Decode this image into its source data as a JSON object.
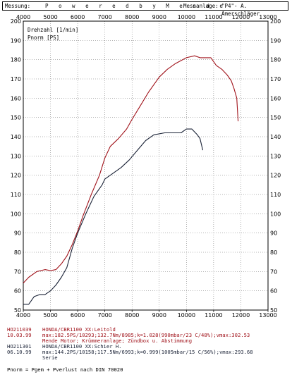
{
  "header": {
    "label": "Messung:",
    "title": "P o w e r e d  b y  M e n d e",
    "messanlage_label": "Messanlage:",
    "messanlage_value": "\"P4\"- A. Amerschläger"
  },
  "chart_data": {
    "type": "line",
    "xlim": [
      4000,
      13000
    ],
    "ylim": [
      50,
      200
    ],
    "x_ticks": [
      "4000",
      "5000",
      "6000",
      "7000",
      "8000",
      "9000",
      "10000",
      "11000",
      "12000",
      "13000"
    ],
    "y_ticks": [
      "50",
      "60",
      "70",
      "80",
      "90",
      "100",
      "110",
      "120",
      "130",
      "140",
      "150",
      "160",
      "170",
      "180",
      "190",
      "200"
    ],
    "grid": true,
    "legend_labels": [
      "Drehzahl [1/min]",
      "Pnorm [PS]"
    ],
    "series": [
      {
        "color": "#a0121a",
        "x": [
          4000,
          4200,
          4500,
          4800,
          5000,
          5200,
          5400,
          5600,
          5800,
          6000,
          6200,
          6500,
          6800,
          7000,
          7200,
          7500,
          7800,
          8000,
          8300,
          8600,
          9000,
          9300,
          9600,
          10000,
          10300,
          10500,
          10700,
          10900,
          11100,
          11300,
          11500,
          11650,
          11750,
          11850,
          11900
        ],
        "y": [
          64,
          67,
          70,
          71,
          70.5,
          71,
          74,
          78,
          84,
          91,
          99,
          110,
          120,
          129,
          135,
          139,
          144,
          149,
          156,
          163,
          171,
          175,
          178,
          181,
          182,
          181,
          181,
          181,
          177,
          175,
          172,
          169,
          165,
          160,
          148
        ]
      },
      {
        "color": "#1a2236",
        "x": [
          4000,
          4200,
          4400,
          4600,
          4800,
          5000,
          5200,
          5400,
          5600,
          5800,
          6000,
          6300,
          6600,
          6900,
          7000,
          7300,
          7600,
          7900,
          8200,
          8500,
          8800,
          9200,
          9500,
          9800,
          10000,
          10200,
          10400,
          10500,
          10600
        ],
        "y": [
          53,
          53,
          57,
          58,
          58,
          60,
          63,
          67,
          72,
          82,
          90,
          100,
          109,
          115,
          118,
          121,
          124,
          128,
          133,
          138,
          141,
          142,
          142,
          142,
          144,
          144,
          141,
          139,
          133
        ]
      }
    ]
  },
  "legend": {
    "runs": [
      {
        "id": "HO211039",
        "date": "10.03.99",
        "model": "HONDA/CBR1100 XX:Leitold",
        "specs": "max:182.5PS/10293;132.7Nm/8985;k=1.028(990mbar/23 C/48%);vmax:302.53",
        "note": "Mende Motor; Krümmeranlage; Zündbox u. Abstimmung"
      },
      {
        "id": "HO211301",
        "date": "06.10.99",
        "model": "HONDA/CBR1100 XX:Schier H.",
        "specs": "max:144.2PS/10158;117.5Nm/6993;k=0.999(1005mbar/15 C/56%);vmax:293.68",
        "note": "Serie"
      }
    ]
  },
  "footer": "Pnorm = Pgem + Pverlust nach DIN 70020"
}
